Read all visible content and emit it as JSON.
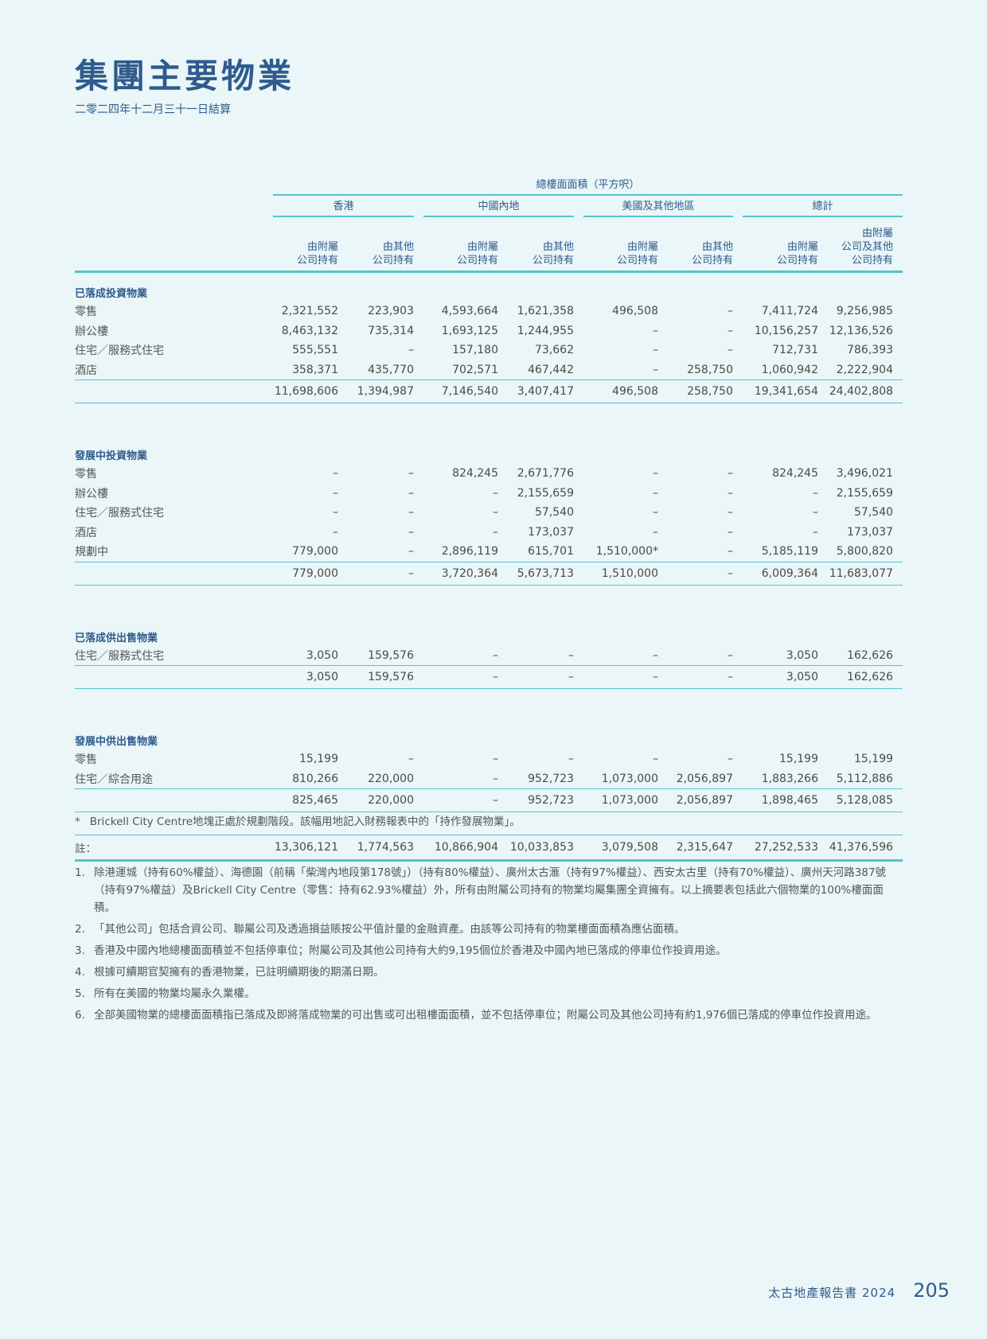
{
  "title": "集團主要物業",
  "subtitle": "二零二四年十二月三十一日結算",
  "table": {
    "header_top": "總樓面面積（平方呎）",
    "groups": [
      "香港",
      "中國內地",
      "美國及其他地區",
      "總計"
    ],
    "subheaders": [
      [
        "由附屬",
        "公司持有"
      ],
      [
        "由其他",
        "公司持有"
      ],
      [
        "由附屬",
        "公司持有"
      ],
      [
        "由其他",
        "公司持有"
      ],
      [
        "由附屬",
        "公司持有"
      ],
      [
        "由其他",
        "公司持有"
      ],
      [
        "由附屬",
        "公司持有"
      ],
      [
        "由附屬",
        "公司及其他",
        "公司持有"
      ]
    ],
    "sections": [
      {
        "title": "已落成投資物業",
        "rows": [
          {
            "label": "零售",
            "values": [
              "2,321,552",
              "223,903",
              "4,593,664",
              "1,621,358",
              "496,508",
              "–",
              "7,411,724",
              "9,256,985"
            ]
          },
          {
            "label": "辦公樓",
            "values": [
              "8,463,132",
              "735,314",
              "1,693,125",
              "1,244,955",
              "–",
              "–",
              "10,156,257",
              "12,136,526"
            ]
          },
          {
            "label": "住宅／服務式住宅",
            "values": [
              "555,551",
              "–",
              "157,180",
              "73,662",
              "–",
              "–",
              "712,731",
              "786,393"
            ]
          },
          {
            "label": "酒店",
            "values": [
              "358,371",
              "435,770",
              "702,571",
              "467,442",
              "–",
              "258,750",
              "1,060,942",
              "2,222,904"
            ]
          }
        ],
        "total": [
          "11,698,606",
          "1,394,987",
          "7,146,540",
          "3,407,417",
          "496,508",
          "258,750",
          "19,341,654",
          "24,402,808"
        ]
      },
      {
        "title": "發展中投資物業",
        "rows": [
          {
            "label": "零售",
            "values": [
              "–",
              "–",
              "824,245",
              "2,671,776",
              "–",
              "–",
              "824,245",
              "3,496,021"
            ]
          },
          {
            "label": "辦公樓",
            "values": [
              "–",
              "–",
              "–",
              "2,155,659",
              "–",
              "–",
              "–",
              "2,155,659"
            ]
          },
          {
            "label": "住宅／服務式住宅",
            "values": [
              "–",
              "–",
              "–",
              "57,540",
              "–",
              "–",
              "–",
              "57,540"
            ]
          },
          {
            "label": "酒店",
            "values": [
              "–",
              "–",
              "–",
              "173,037",
              "–",
              "–",
              "–",
              "173,037"
            ]
          },
          {
            "label": "規劃中",
            "values": [
              "779,000",
              "–",
              "2,896,119",
              "615,701",
              "1,510,000*",
              "–",
              "5,185,119",
              "5,800,820"
            ]
          }
        ],
        "total": [
          "779,000",
          "–",
          "3,720,364",
          "5,673,713",
          "1,510,000",
          "–",
          "6,009,364",
          "11,683,077"
        ]
      },
      {
        "title": "已落成供出售物業",
        "rows": [
          {
            "label": "住宅／服務式住宅",
            "values": [
              "3,050",
              "159,576",
              "–",
              "–",
              "–",
              "–",
              "3,050",
              "162,626"
            ]
          }
        ],
        "total": [
          "3,050",
          "159,576",
          "–",
          "–",
          "–",
          "–",
          "3,050",
          "162,626"
        ]
      },
      {
        "title": "發展中供出售物業",
        "rows": [
          {
            "label": "零售",
            "values": [
              "15,199",
              "–",
              "–",
              "–",
              "–",
              "–",
              "15,199",
              "15,199"
            ]
          },
          {
            "label": "住宅／綜合用途",
            "values": [
              "810,266",
              "220,000",
              "–",
              "952,723",
              "1,073,000",
              "2,056,897",
              "1,883,266",
              "5,112,886"
            ]
          }
        ],
        "total": [
          "825,465",
          "220,000",
          "–",
          "952,723",
          "1,073,000",
          "2,056,897",
          "1,898,465",
          "5,128,085"
        ]
      }
    ],
    "grand_total": [
      "13,306,121",
      "1,774,563",
      "10,866,904",
      "10,033,853",
      "3,079,508",
      "2,315,647",
      "27,252,533",
      "41,376,596"
    ]
  },
  "footnote": {
    "mark": "*",
    "text": "Brickell City Centre地塊正處於規劃階段。該幅用地記入財務報表中的「持作發展物業」。"
  },
  "notes_heading": "註：",
  "notes": [
    {
      "num": "1.",
      "text": "除港運城（持有60%權益）、海德園（前稱「柴灣內地段第178號」）（持有80%權益）、廣州太古滙（持有97%權益）、西安太古里（持有70%權益）、廣州天河路387號（持有97%權益）及Brickell City Centre（零售：持有62.93%權益）外，所有由附屬公司持有的物業均屬集團全資擁有。以上摘要表包括此六個物業的100%樓面面積。"
    },
    {
      "num": "2.",
      "text": "「其他公司」包括合資公司、聯屬公司及透過損益賬按公平值計量的金融資產。由該等公司持有的物業樓面面積為應佔面積。"
    },
    {
      "num": "3.",
      "text": "香港及中國內地總樓面面積並不包括停車位；附屬公司及其他公司持有大約9,195個位於香港及中國內地已落成的停車位作投資用途。"
    },
    {
      "num": "4.",
      "text": "根據可續期官契擁有的香港物業，已註明續期後的期滿日期。"
    },
    {
      "num": "5.",
      "text": "所有在美國的物業均屬永久業權。"
    },
    {
      "num": "6.",
      "text": "全部美國物業的總樓面面積指已落成及即將落成物業的可出售或可出租樓面面積，並不包括停車位；附屬公司及其他公司持有約1,976個已落成的停車位作投資用途。"
    }
  ],
  "footer": {
    "report": "太古地產報告書 2024",
    "page": "205"
  },
  "colors": {
    "accent_line": "#56c3cf",
    "heading_blue": "#2f5b8e",
    "background": "#eaf6f7"
  }
}
